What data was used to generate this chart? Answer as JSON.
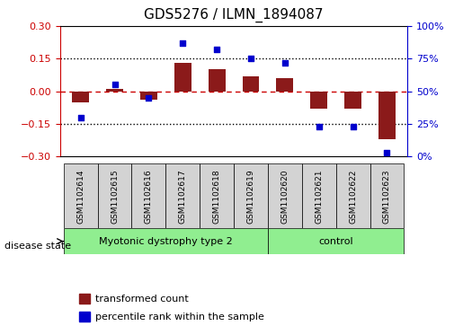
{
  "title": "GDS5276 / ILMN_1894087",
  "categories": [
    "GSM1102614",
    "GSM1102615",
    "GSM1102616",
    "GSM1102617",
    "GSM1102618",
    "GSM1102619",
    "GSM1102620",
    "GSM1102621",
    "GSM1102622",
    "GSM1102623"
  ],
  "bar_values": [
    -0.05,
    0.01,
    -0.04,
    0.13,
    0.1,
    0.07,
    0.06,
    -0.08,
    -0.08,
    -0.22
  ],
  "scatter_values": [
    30,
    55,
    45,
    87,
    82,
    75,
    72,
    23,
    23,
    3
  ],
  "ylim_left": [
    -0.3,
    0.3
  ],
  "ylim_right": [
    0,
    100
  ],
  "yticks_left": [
    -0.3,
    -0.15,
    0.0,
    0.15,
    0.3
  ],
  "yticks_right": [
    0,
    25,
    50,
    75,
    100
  ],
  "bar_color": "#8B1A1A",
  "scatter_color": "#0000CD",
  "hline_color": "#CC0000",
  "dotline_color": "#000000",
  "disease_groups": [
    {
      "label": "Myotonic dystrophy type 2",
      "start": 0,
      "end": 6,
      "color": "#90EE90"
    },
    {
      "label": "control",
      "start": 6,
      "end": 10,
      "color": "#90EE90"
    }
  ],
  "disease_label": "disease state",
  "legend_items": [
    {
      "label": "transformed count",
      "color": "#8B1A1A",
      "marker": "s"
    },
    {
      "label": "percentile rank within the sample",
      "color": "#0000CD",
      "marker": "s"
    }
  ],
  "box_bg_color": "#D3D3D3",
  "fig_width": 5.15,
  "fig_height": 3.63
}
